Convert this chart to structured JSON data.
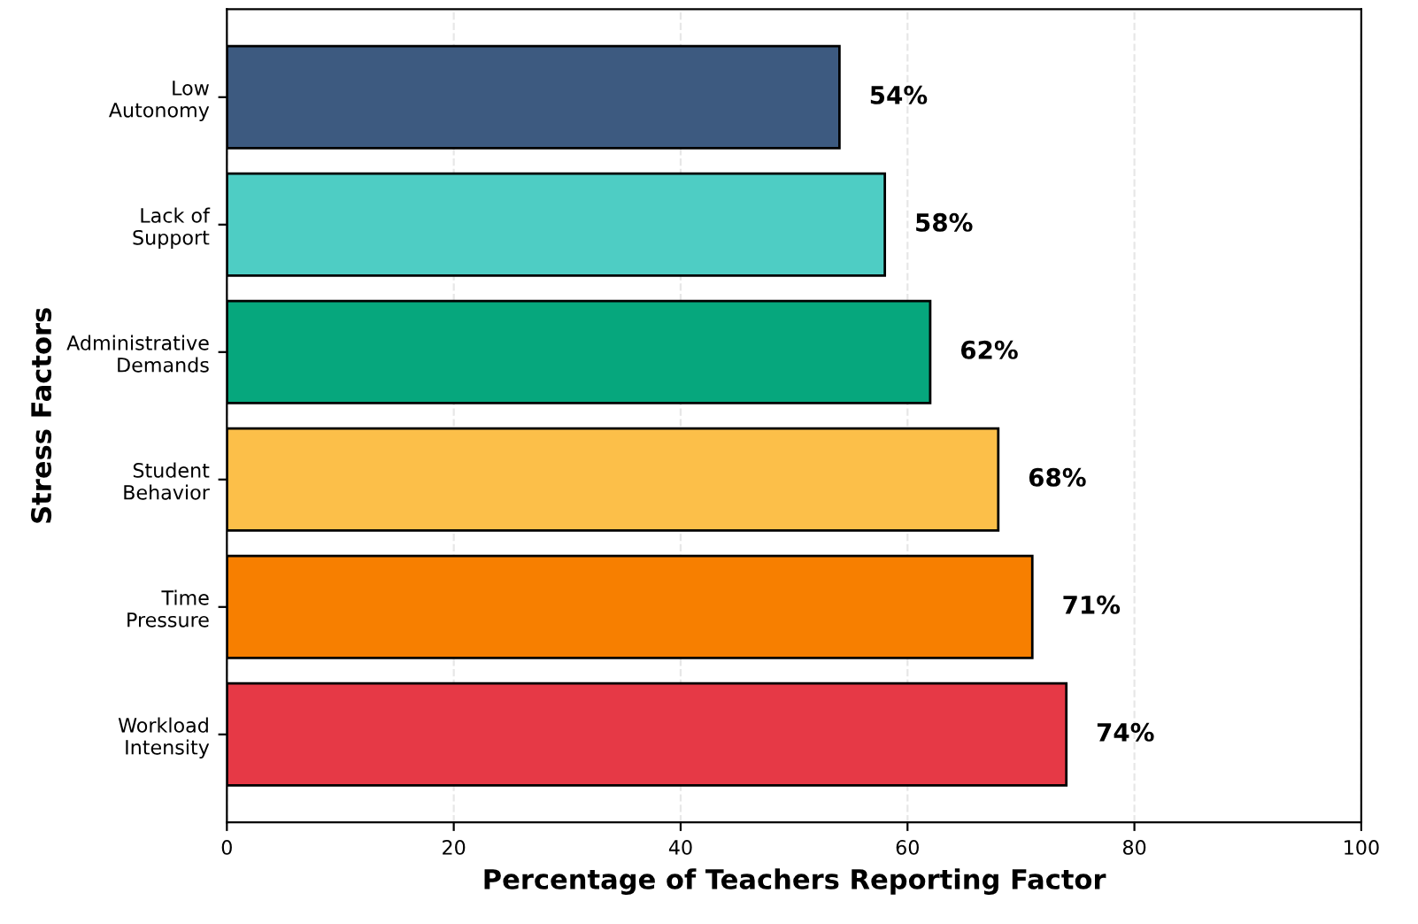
{
  "chart_data": {
    "type": "bar",
    "orientation": "horizontal",
    "xlabel": "Percentage of Teachers Reporting Factor",
    "ylabel": "Stress Factors",
    "categories": [
      "Low\nAutonomy",
      "Lack of\nSupport",
      "Administrative\nDemands",
      "Student\nBehavior",
      "Time\nPressure",
      "Workload\nIntensity"
    ],
    "values": [
      54,
      58,
      62,
      68,
      71,
      74
    ],
    "colors": [
      "#3d5a80",
      "#4ecdc4",
      "#06a77d",
      "#fcbf49",
      "#f77f00",
      "#e63946"
    ],
    "value_labels": [
      "54%",
      "58%",
      "62%",
      "68%",
      "71%",
      "74%"
    ],
    "xlim": [
      0,
      100
    ],
    "xticks": [
      0,
      20,
      40,
      60,
      80,
      100
    ],
    "grid": "x"
  }
}
